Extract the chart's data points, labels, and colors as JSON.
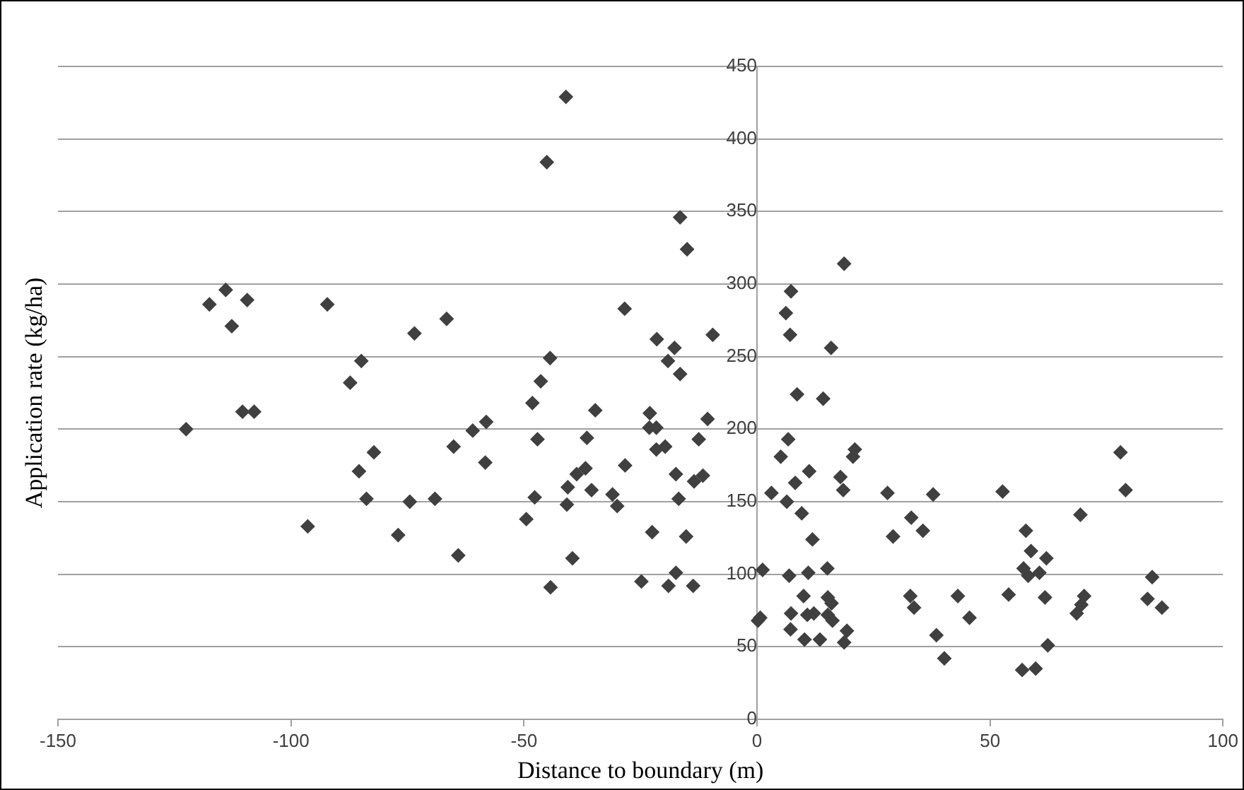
{
  "chart_data": {
    "type": "scatter",
    "xlabel": "Distance to boundary (m)",
    "ylabel": "Application rate (kg/ha)",
    "xlim": [
      -150,
      100
    ],
    "xticks": [
      -150,
      -100,
      -50,
      0,
      50,
      100
    ],
    "ylim": [
      0,
      450
    ],
    "yticks": [
      0,
      50,
      100,
      150,
      200,
      250,
      300,
      350,
      400,
      450
    ],
    "grid": "y",
    "marker": "diamond",
    "color": "#404040",
    "x": [
      -114,
      -117.5,
      -109.4,
      -112.7,
      -92.2,
      -73.5,
      -66.6,
      -84.9,
      -87.3,
      -122.5,
      -110.4,
      -107.9,
      -82.2,
      -85.4,
      -83.8,
      -96.4,
      -74.5,
      -69.1,
      -77,
      -64.1,
      -61,
      -58.1,
      -65.1,
      -58.3,
      -41,
      -45.1,
      -16.5,
      -15,
      -28.4,
      -9.5,
      -21.5,
      -17.7,
      -19.1,
      -16.5,
      -44.4,
      -46.4,
      -48.2,
      -34.7,
      -23,
      -23.1,
      -21.6,
      -10.6,
      -12.5,
      -47.1,
      -36.5,
      -21.6,
      -19.7,
      -28.3,
      -17.4,
      -11.6,
      -13.5,
      -36.8,
      -38.7,
      -40.6,
      -35.5,
      -47.7,
      -31,
      -30,
      -16.8,
      -40.8,
      -49.5,
      -22.5,
      -15.2,
      -39.6,
      -17.4,
      -24.8,
      -44.3,
      -19,
      -13.7,
      18.7,
      7.3,
      6.2,
      7.1,
      15.9,
      8.6,
      14.2,
      6.7,
      5.1,
      21,
      20.6,
      11.2,
      8.2,
      17.9,
      18.5,
      3.1,
      6.4,
      28,
      37.8,
      9.6,
      33.1,
      35.6,
      29.2,
      11.9,
      1.2,
      6.9,
      11,
      15.1,
      10,
      15.2,
      16,
      7.3,
      10.8,
      12.2,
      15.2,
      16.2,
      0.7,
      0.2,
      7.2,
      19.3,
      10.2,
      13.5,
      18.7,
      32.9,
      33.7,
      43.1,
      45.6,
      38.5,
      40.2,
      78,
      52.7,
      79.1,
      69.4,
      57.7,
      58.8,
      62.1,
      57.2,
      58.2,
      60.6,
      54,
      61.8,
      70.2,
      69.6,
      68.6,
      84.8,
      83.8,
      86.9,
      62.4,
      56.9,
      59.8
    ],
    "values": [
      296,
      286,
      289,
      271,
      286,
      266,
      276,
      247,
      232,
      200,
      212,
      212,
      184,
      171,
      152,
      133,
      150,
      152,
      127,
      113,
      199,
      205,
      188,
      177,
      429,
      384,
      346,
      324,
      283,
      265,
      262,
      256,
      247,
      238,
      249,
      233,
      218,
      213,
      211,
      201,
      201,
      207,
      193,
      193,
      194,
      186,
      188,
      175,
      169,
      168,
      164,
      173,
      169,
      160,
      158,
      153,
      155,
      147,
      152,
      148,
      138,
      129,
      126,
      111,
      101,
      95,
      91,
      92,
      92,
      314,
      295,
      280,
      265,
      256,
      224,
      221,
      193,
      181,
      186,
      181,
      171,
      163,
      167,
      158,
      156,
      150,
      156,
      155,
      142,
      139,
      130,
      126,
      124,
      103,
      99,
      101,
      104,
      85,
      84,
      80,
      73,
      72,
      73,
      72,
      68,
      70,
      68,
      62,
      61,
      55,
      55,
      53,
      85,
      77,
      85,
      70,
      58,
      42,
      184,
      157,
      158,
      141,
      130,
      116,
      111,
      104,
      99,
      101,
      86,
      84,
      85,
      79,
      73,
      98,
      83,
      77,
      51,
      34,
      35
    ]
  }
}
